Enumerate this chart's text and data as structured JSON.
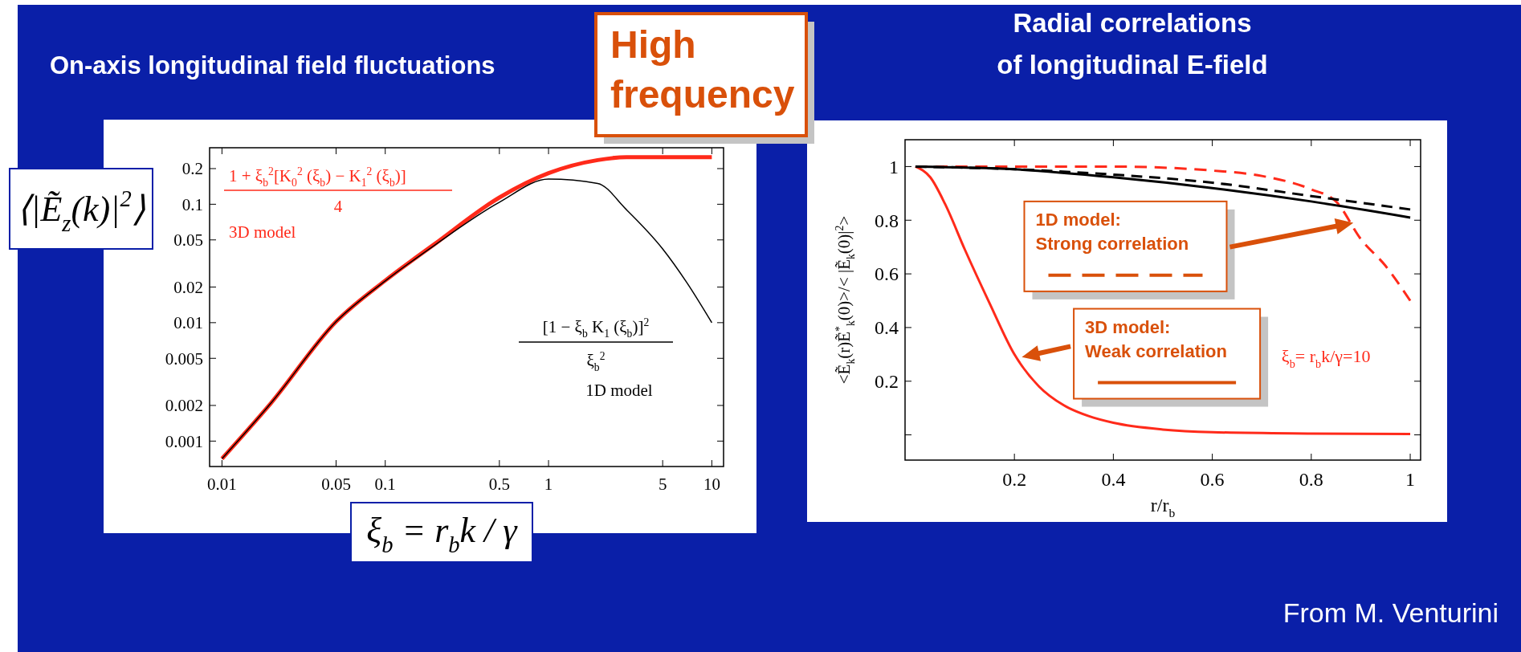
{
  "chart_data": [
    {
      "type": "line",
      "title": "On-axis longitudinal field fluctuations",
      "xlabel": "ξ$_{b}$ = r$_{b}$k / γ",
      "ylabel": "⟨|Ẽ$_{z}$(k)|$^{2}$⟩",
      "log": "xy",
      "x": [
        0.01,
        0.02,
        0.05,
        0.1,
        0.2,
        0.5,
        1,
        2,
        3,
        5,
        7,
        10
      ],
      "series": [
        {
          "color": "#ff2a1a",
          "values": [
            0.00071,
            0.0021,
            0.0102,
            0.0227,
            0.046,
            0.114,
            0.183,
            0.236,
            0.25,
            0.25,
            0.25,
            0.25
          ]
        },
        {
          "color": "#000000",
          "values": [
            0.00071,
            0.0021,
            0.0102,
            0.0225,
            0.045,
            0.104,
            0.163,
            0.15,
            0.09,
            0.042,
            0.022,
            0.01
          ]
        }
      ],
      "xlim": [
        0.0084,
        11.8
      ],
      "ylim": [
        0.00061,
        0.3
      ],
      "xticks": [
        0.01,
        0.05,
        0.1,
        0.5,
        1,
        5,
        10
      ],
      "yticks": [
        0.001,
        0.002,
        0.005,
        0.01,
        0.02,
        0.05,
        0.1,
        0.2
      ],
      "annotations": [
        "1 + ξ$_{b}$$^{2}$[K$_{0}$$^{2}$ (ξ$_{b}$) − K$_{1}$$^{2}$ (ξ$_{b}$)]",
        "4",
        "3D model",
        "[1 − ξ$_{b}$ K$_{1}$ (ξ$_{b}$)]$^{2}$",
        "ξ$_{b}$$^{2}$",
        "1D model"
      ]
    },
    {
      "type": "line",
      "title": "Radial correlations\nof longitudinal E-field",
      "xlabel": "r/r$_{b}$",
      "ylabel": "<Ẽ$_{k}$(r)Ẽ$^{*}$$_{k}$(0)>/< |Ẽ$_{k}$(0)|$^{2}$>",
      "series": [
        {
          "color": "#ff2a1a",
          "line_style": "solid",
          "x": [
            0,
            0.03,
            0.06,
            0.1,
            0.15,
            0.2,
            0.25,
            0.3,
            0.35,
            0.4,
            0.5,
            0.6,
            0.8,
            1
          ],
          "values": [
            1,
            0.96,
            0.86,
            0.69,
            0.49,
            0.3,
            0.18,
            0.11,
            0.07,
            0.045,
            0.02,
            0.01,
            0.005,
            0.003
          ]
        },
        {
          "color": "#ff2a1a",
          "line_style": "dashed",
          "x": [
            0,
            0.2,
            0.4,
            0.6,
            0.7,
            0.8,
            0.85,
            0.9,
            0.95,
            1
          ],
          "values": [
            1,
            1,
            1,
            0.985,
            0.965,
            0.915,
            0.87,
            0.73,
            0.63,
            0.5
          ]
        },
        {
          "color": "#000000",
          "line_style": "solid",
          "x": [
            0,
            0.2,
            0.4,
            0.6,
            0.8,
            1
          ],
          "values": [
            1,
            0.99,
            0.96,
            0.92,
            0.87,
            0.81
          ]
        },
        {
          "color": "#000000",
          "line_style": "dashed",
          "x": [
            0,
            0.2,
            0.4,
            0.6,
            0.8,
            1
          ],
          "values": [
            1,
            0.99,
            0.97,
            0.94,
            0.89,
            0.84
          ]
        }
      ],
      "xlim": [
        -0.021,
        1.021
      ],
      "ylim": [
        -0.094,
        1.1
      ],
      "xticks": [
        0.2,
        0.4,
        0.6,
        0.8,
        1
      ],
      "yticks": [
        {
          "value": 0,
          "label": null
        },
        0.2,
        0.4,
        0.6,
        0.8,
        1
      ],
      "annotations": [
        "1D model:\nStrong correlation",
        "3D model:\nWeak correlation",
        "ξ$_{b}$= r$_{b}$k/γ=10",
        "High\nfrequency",
        "From M. Venturini"
      ]
    }
  ]
}
